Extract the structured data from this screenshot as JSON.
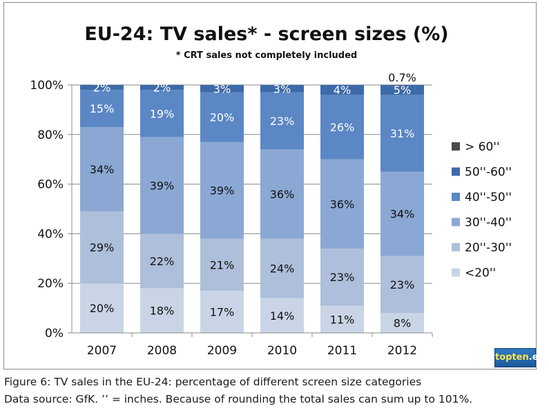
{
  "chart_data": {
    "type": "bar",
    "stacked": true,
    "title": "EU-24: TV sales* - screen sizes (%)",
    "subtitle": "* CRT sales not completely included",
    "categories": [
      "2007",
      "2008",
      "2009",
      "2010",
      "2011",
      "2012"
    ],
    "series": [
      {
        "name": "<20''",
        "values": [
          20,
          18,
          17,
          14,
          11,
          8
        ],
        "labels": [
          "20%",
          "18%",
          "17%",
          "14%",
          "11%",
          "8%"
        ],
        "color": "#c9d5e6"
      },
      {
        "name": "20''-30''",
        "values": [
          29,
          22,
          21,
          24,
          23,
          23
        ],
        "labels": [
          "29%",
          "22%",
          "21%",
          "24%",
          "23%",
          "23%"
        ],
        "color": "#aebfdb"
      },
      {
        "name": "30''-40''",
        "values": [
          34,
          39,
          39,
          36,
          36,
          34
        ],
        "labels": [
          "34%",
          "39%",
          "39%",
          "36%",
          "36%",
          "34%"
        ],
        "color": "#8aa8d3"
      },
      {
        "name": "40''-50''",
        "values": [
          15,
          19,
          20,
          23,
          26,
          31
        ],
        "labels": [
          "15%",
          "19%",
          "20%",
          "23%",
          "26%",
          "31%"
        ],
        "color": "#5b87c5"
      },
      {
        "name": "50''-60''",
        "values": [
          2,
          2,
          3,
          3,
          4,
          5
        ],
        "labels": [
          "2%",
          "2%",
          "3%",
          "3%",
          "4%",
          "5%"
        ],
        "color": "#3d6aa8"
      },
      {
        "name": "> 60''",
        "values": [
          0,
          0,
          0,
          0,
          0,
          0.7
        ],
        "labels": [
          "",
          "",
          "",
          "",
          "",
          "0.7%"
        ],
        "color": "#4a4a4a"
      }
    ],
    "legend_order": [
      "> 60''",
      "50''-60''",
      "40''-50''",
      "30''-40''",
      "20''-30''",
      "<20''"
    ],
    "legend_position": "right",
    "yticks": [
      "0%",
      "20%",
      "40%",
      "60%",
      "80%",
      "100%"
    ],
    "ylim": [
      0,
      100
    ],
    "xlabel": "",
    "ylabel": "",
    "grid": true
  },
  "logo": {
    "main": "topten",
    "suffix": ".eu"
  },
  "captions": [
    "Figure 6: TV sales in the EU-24: percentage of different screen size categories",
    "Data source: GfK. ’’ = inches. Because of rounding the total sales can sum up to 101%."
  ]
}
